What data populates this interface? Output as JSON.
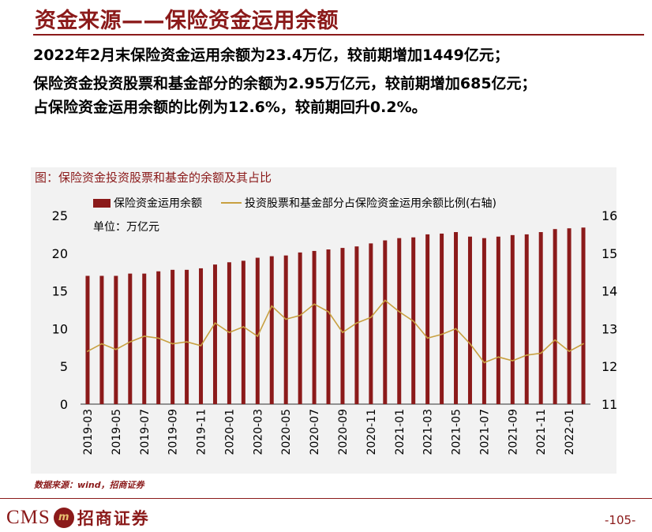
{
  "header": {
    "title": "资金来源——保险资金运用余额"
  },
  "bullets": [
    "2022年2月末保险资金运用余额为23.4万亿，较前期增加1449亿元；",
    "保险资金投资股票和基金部分的余额为2.95万亿元，较前期增加685亿元；",
    "占保险资金运用余额的比例为12.6%，较前期回升0.2%。"
  ],
  "figure": {
    "title": "图：保险资金投资股票和基金的余额及其占比",
    "unit": "单位：万亿元",
    "source": "数据来源：wind，招商证券"
  },
  "footer": {
    "logo_text": "CMS",
    "logo_mark": "m",
    "logo_cn": "招商证券",
    "page": "-105-"
  },
  "colors": {
    "bar": "#8b1a1a",
    "line": "#c8a040",
    "brand": "#8b1a1a"
  },
  "chart_data": {
    "type": "bar+line",
    "title": "图：保险资金投资股票和基金的余额及其占比",
    "categories": [
      "2019-03",
      "2019-04",
      "2019-05",
      "2019-06",
      "2019-07",
      "2019-08",
      "2019-09",
      "2019-10",
      "2019-11",
      "2019-12",
      "2020-01",
      "2020-02",
      "2020-03",
      "2020-04",
      "2020-05",
      "2020-06",
      "2020-07",
      "2020-08",
      "2020-09",
      "2020-10",
      "2020-11",
      "2020-12",
      "2021-01",
      "2021-02",
      "2021-03",
      "2021-04",
      "2021-05",
      "2021-06",
      "2021-07",
      "2021-08",
      "2021-09",
      "2021-10",
      "2021-11",
      "2021-12",
      "2022-01",
      "2022-02"
    ],
    "x_tick_labels": [
      "2019-03",
      "2019-05",
      "2019-07",
      "2019-09",
      "2019-11",
      "2020-01",
      "2020-03",
      "2020-05",
      "2020-07",
      "2020-09",
      "2020-11",
      "2021-01",
      "2021-03",
      "2021-05",
      "2021-07",
      "2021-09",
      "2021-11",
      "2022-01"
    ],
    "series": [
      {
        "name": "保险资金运用余额",
        "type": "bar",
        "axis": "left",
        "values": [
          17.0,
          17.0,
          17.0,
          17.3,
          17.3,
          17.6,
          17.8,
          17.8,
          18.0,
          18.5,
          18.8,
          19.0,
          19.4,
          19.6,
          19.7,
          20.1,
          20.3,
          20.5,
          20.7,
          20.9,
          21.3,
          21.7,
          22.0,
          22.1,
          22.5,
          22.6,
          22.8,
          22.2,
          22.0,
          22.2,
          22.4,
          22.5,
          22.8,
          23.2,
          23.3,
          23.4
        ]
      },
      {
        "name": "投资股票和基金部分占保险资金运用余额比例(右轴)",
        "type": "line",
        "axis": "right",
        "values": [
          12.4,
          12.6,
          12.45,
          12.65,
          12.8,
          12.75,
          12.6,
          12.65,
          12.55,
          13.15,
          12.9,
          13.05,
          12.8,
          13.6,
          13.25,
          13.35,
          13.65,
          13.45,
          12.9,
          13.15,
          13.3,
          13.75,
          13.45,
          13.2,
          12.75,
          12.85,
          13.0,
          12.6,
          12.1,
          12.25,
          12.15,
          12.3,
          12.35,
          12.7,
          12.4,
          12.6
        ]
      }
    ],
    "y_left": {
      "ylim": [
        0,
        25
      ],
      "ticks": [
        0,
        5,
        10,
        15,
        20,
        25
      ]
    },
    "y_right": {
      "ylim": [
        11,
        16
      ],
      "ticks": [
        11,
        12,
        13,
        14,
        15,
        16
      ]
    },
    "legend_position": "top"
  }
}
